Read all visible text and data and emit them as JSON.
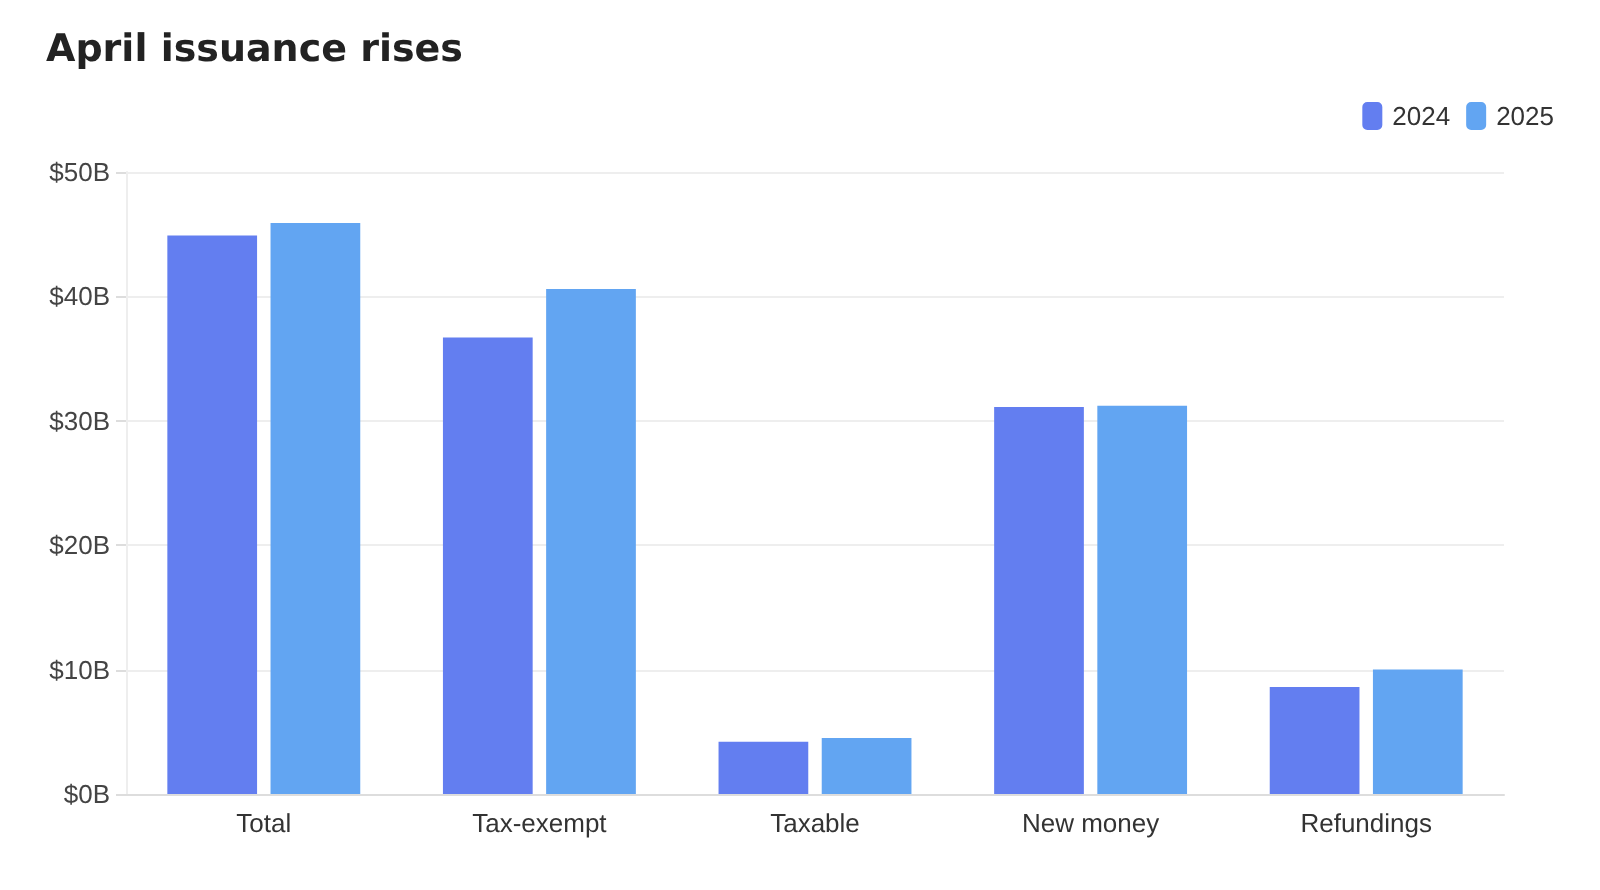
{
  "chart_data": {
    "type": "bar",
    "title": "April issuance rises",
    "categories": [
      "Total",
      "Tax-exempt",
      "Taxable",
      "New money",
      "Refundings"
    ],
    "series": [
      {
        "name": "2024",
        "color": "#637ef0",
        "values": [
          44.9,
          36.7,
          4.2,
          31.1,
          8.6
        ]
      },
      {
        "name": "2025",
        "color": "#62a5f2",
        "values": [
          45.9,
          40.6,
          4.5,
          31.2,
          10.0
        ]
      }
    ],
    "ylim": [
      0,
      50
    ],
    "yticks": [
      {
        "value": 0,
        "label": "$0B"
      },
      {
        "value": 10,
        "label": "$10B"
      },
      {
        "value": 20,
        "label": "$20B"
      },
      {
        "value": 30,
        "label": "$30B"
      },
      {
        "value": 40,
        "label": "$40B"
      },
      {
        "value": 50,
        "label": "$50B"
      }
    ],
    "grid": "y",
    "legend": "top right"
  }
}
